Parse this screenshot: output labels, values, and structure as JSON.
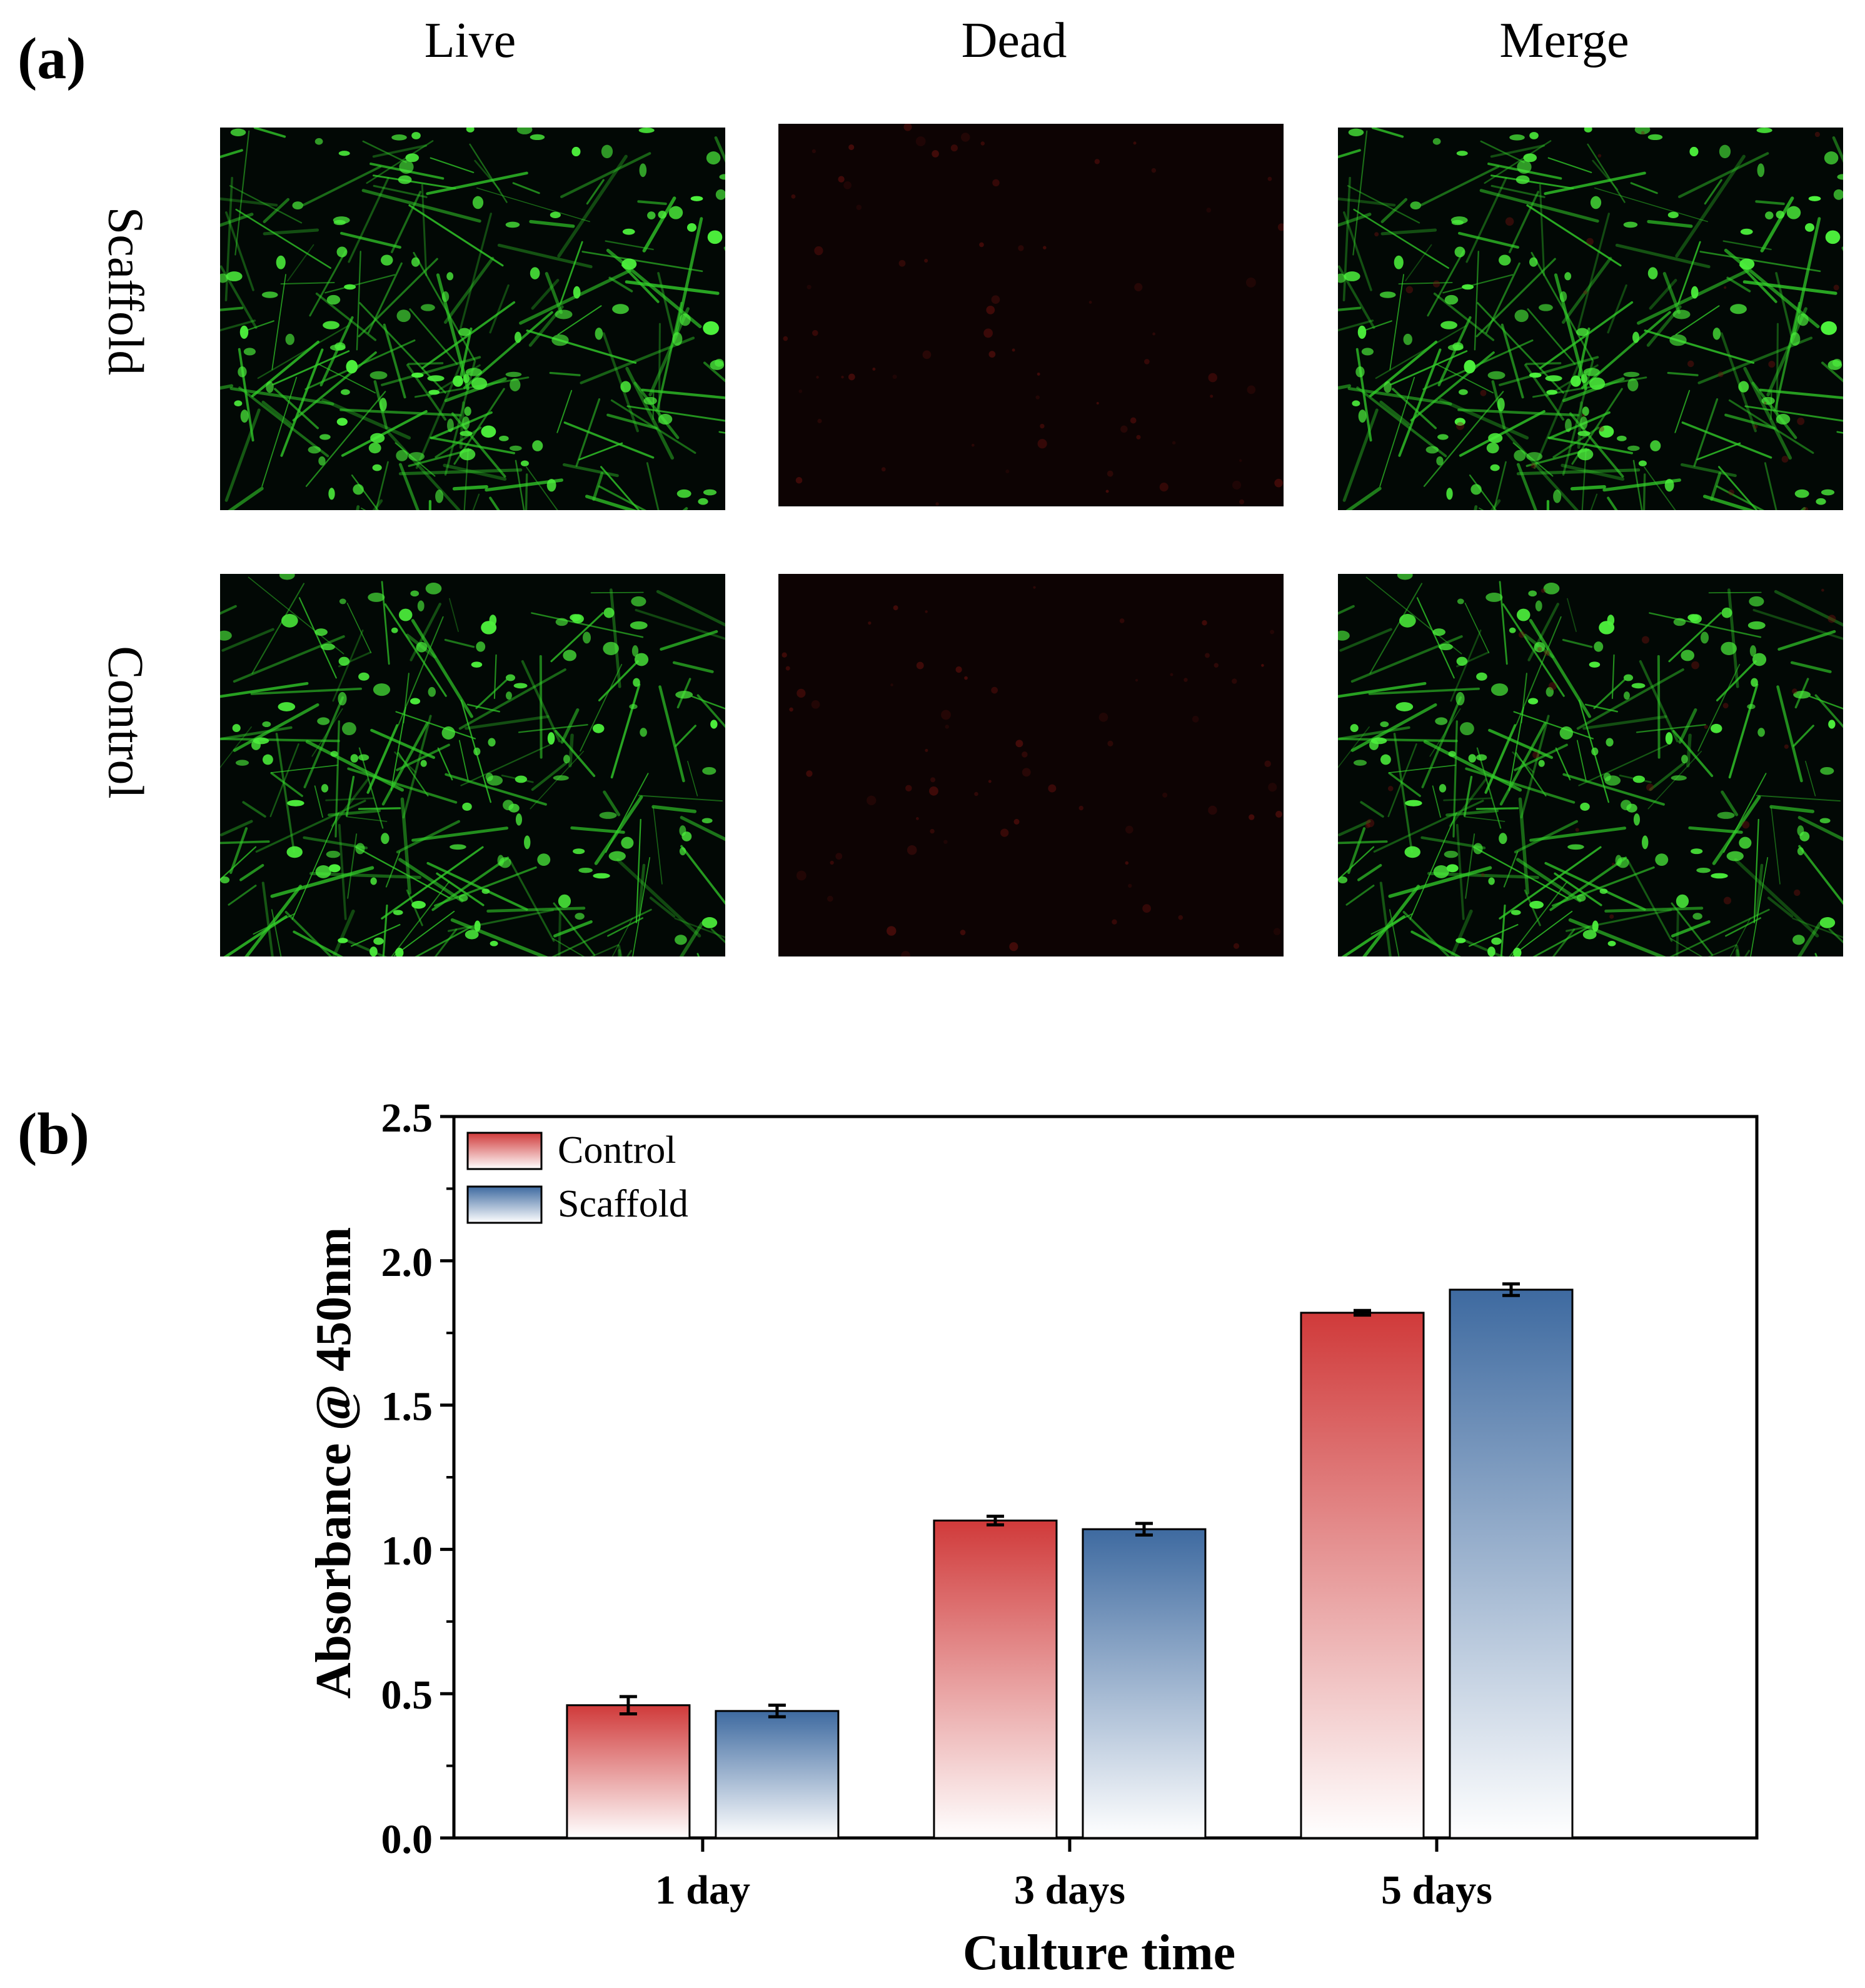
{
  "panel_a": {
    "label": "(a)",
    "columns": [
      "Live",
      "Dead",
      "Merge"
    ],
    "rows": [
      "Scaffold",
      "Control"
    ],
    "colors": {
      "live": "#33d02a",
      "dead": "#7a1410",
      "background": "#020805"
    }
  },
  "panel_b": {
    "label": "(b)"
  },
  "chart_data": {
    "type": "bar",
    "categories": [
      "1 day",
      "3 days",
      "5 days"
    ],
    "series": [
      {
        "name": "Control",
        "values": [
          0.46,
          1.1,
          1.82
        ],
        "errors": [
          0.03,
          0.015,
          0.008
        ],
        "color": "#d03a3a"
      },
      {
        "name": "Scaffold",
        "values": [
          0.44,
          1.07,
          1.9
        ],
        "errors": [
          0.02,
          0.02,
          0.02
        ],
        "color": "#3e6aa0"
      }
    ],
    "xlabel": "Culture time",
    "ylabel": "Absorbance @ 450nm",
    "ylim": [
      0,
      2.5
    ],
    "yticks": [
      "0.0",
      "0.5",
      "1.0",
      "1.5",
      "2.0",
      "2.5"
    ],
    "legend_position": "top-left",
    "grid": false
  }
}
